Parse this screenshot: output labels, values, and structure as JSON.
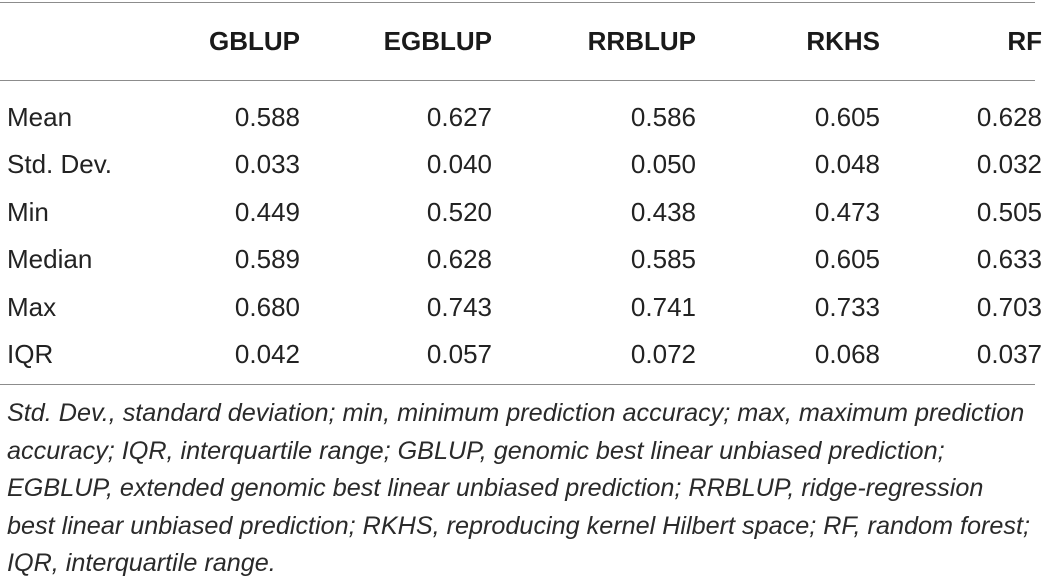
{
  "table": {
    "columns": [
      "",
      "GBLUP",
      "EGBLUP",
      "RRBLUP",
      "RKHS",
      "RF"
    ],
    "rows": [
      {
        "label": "Mean",
        "values": [
          "0.588",
          "0.627",
          "0.586",
          "0.605",
          "0.628"
        ]
      },
      {
        "label": "Std. Dev.",
        "values": [
          "0.033",
          "0.040",
          "0.050",
          "0.048",
          "0.032"
        ]
      },
      {
        "label": "Min",
        "values": [
          "0.449",
          "0.520",
          "0.438",
          "0.473",
          "0.505"
        ]
      },
      {
        "label": "Median",
        "values": [
          "0.589",
          "0.628",
          "0.585",
          "0.605",
          "0.633"
        ]
      },
      {
        "label": "Max",
        "values": [
          "0.680",
          "0.743",
          "0.741",
          "0.733",
          "0.703"
        ]
      },
      {
        "label": "IQR",
        "values": [
          "0.042",
          "0.057",
          "0.072",
          "0.068",
          "0.037"
        ]
      }
    ]
  },
  "footnote": "Std. Dev., standard deviation; min, minimum prediction accuracy; max, maximum prediction accuracy; IQR, interquartile range; GBLUP, genomic best linear unbiased prediction; EGBLUP, extended genomic best linear unbiased prediction; RRBLUP, ridge-regression best linear unbiased prediction; RKHS, reproducing kernel Hilbert space; RF, random forest; IQR, interquartile range."
}
